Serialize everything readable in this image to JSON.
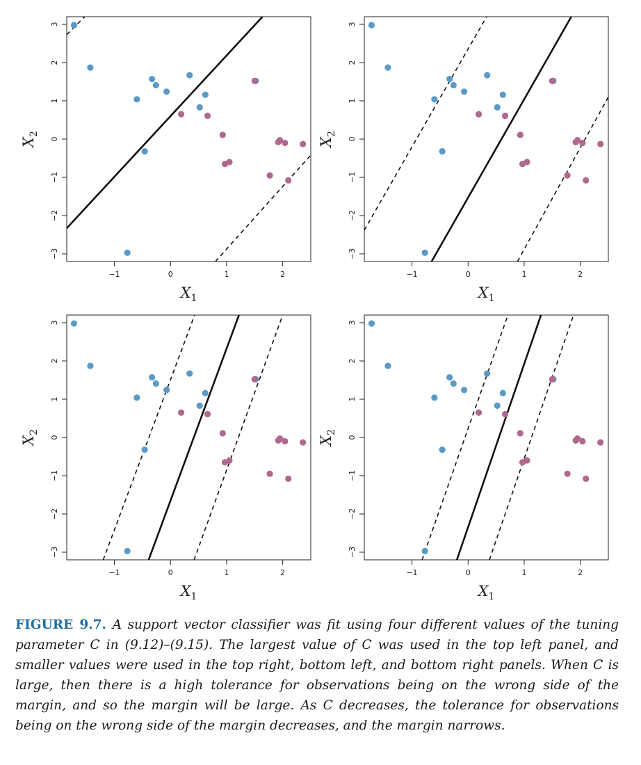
{
  "chart_data": [
    {
      "type": "scatter",
      "panel": "top-left",
      "xlabel": "X1",
      "ylabel": "X2",
      "xlim": [
        -1.85,
        2.5
      ],
      "ylim": [
        -3.2,
        3.2
      ],
      "xticks": [
        -1,
        0,
        1,
        2
      ],
      "yticks": [
        -3,
        -2,
        -1,
        0,
        1,
        2,
        3
      ],
      "grid": false,
      "series": [
        {
          "color": "#5b9ac6",
          "points": [
            [
              -1.72,
              2.98
            ],
            [
              -1.43,
              1.87
            ],
            [
              -0.6,
              1.04
            ],
            [
              -0.33,
              1.57
            ],
            [
              -0.26,
              1.41
            ],
            [
              -0.07,
              1.24
            ],
            [
              0.34,
              1.67
            ],
            [
              0.52,
              0.83
            ],
            [
              0.62,
              1.16
            ],
            [
              1.52,
              1.52
            ],
            [
              -0.46,
              -0.32
            ],
            [
              -0.77,
              -2.97
            ]
          ]
        },
        {
          "color": "#b0688e",
          "points": [
            [
              0.19,
              0.65
            ],
            [
              0.66,
              0.61
            ],
            [
              0.93,
              0.11
            ],
            [
              1.5,
              1.52
            ],
            [
              0.97,
              -0.65
            ],
            [
              1.05,
              -0.6
            ],
            [
              1.77,
              -0.95
            ],
            [
              1.92,
              -0.08
            ],
            [
              1.95,
              -0.03
            ],
            [
              2.04,
              -0.1
            ],
            [
              2.1,
              -1.08
            ],
            [
              2.36,
              -0.13
            ]
          ]
        }
      ],
      "lines": [
        {
          "style": "solid",
          "p1": [
            -1.85,
            -2.33
          ],
          "p2": [
            1.64,
            3.2
          ]
        },
        {
          "style": "dashed",
          "p1": [
            -1.85,
            2.73
          ],
          "p2": [
            -1.53,
            3.2
          ]
        },
        {
          "style": "dashed",
          "p1": [
            0.8,
            -3.2
          ],
          "p2": [
            2.5,
            -0.42
          ]
        }
      ]
    },
    {
      "type": "scatter",
      "panel": "top-right",
      "xlabel": "X1",
      "ylabel": "X2",
      "xlim": [
        -1.85,
        2.5
      ],
      "ylim": [
        -3.2,
        3.2
      ],
      "xticks": [
        -1,
        0,
        1,
        2
      ],
      "yticks": [
        -3,
        -2,
        -1,
        0,
        1,
        2,
        3
      ],
      "grid": false,
      "series": [
        {
          "color": "#5b9ac6",
          "points": [
            [
              -1.72,
              2.98
            ],
            [
              -1.43,
              1.87
            ],
            [
              -0.6,
              1.04
            ],
            [
              -0.33,
              1.57
            ],
            [
              -0.26,
              1.41
            ],
            [
              -0.07,
              1.24
            ],
            [
              0.34,
              1.67
            ],
            [
              0.52,
              0.83
            ],
            [
              0.62,
              1.16
            ],
            [
              1.52,
              1.52
            ],
            [
              -0.46,
              -0.32
            ],
            [
              -0.77,
              -2.97
            ]
          ]
        },
        {
          "color": "#b0688e",
          "points": [
            [
              0.19,
              0.65
            ],
            [
              0.66,
              0.61
            ],
            [
              0.93,
              0.11
            ],
            [
              1.5,
              1.52
            ],
            [
              0.97,
              -0.65
            ],
            [
              1.05,
              -0.6
            ],
            [
              1.77,
              -0.95
            ],
            [
              1.92,
              -0.08
            ],
            [
              1.95,
              -0.03
            ],
            [
              2.04,
              -0.1
            ],
            [
              2.1,
              -1.08
            ],
            [
              2.36,
              -0.13
            ]
          ]
        }
      ],
      "lines": [
        {
          "style": "solid",
          "p1": [
            -0.65,
            -3.2
          ],
          "p2": [
            1.84,
            3.2
          ]
        },
        {
          "style": "dashed",
          "p1": [
            -1.85,
            -2.38
          ],
          "p2": [
            0.33,
            3.2
          ]
        },
        {
          "style": "dashed",
          "p1": [
            0.88,
            -3.2
          ],
          "p2": [
            2.5,
            1.1
          ]
        }
      ]
    },
    {
      "type": "scatter",
      "panel": "bottom-left",
      "xlabel": "X1",
      "ylabel": "X2",
      "xlim": [
        -1.85,
        2.5
      ],
      "ylim": [
        -3.2,
        3.2
      ],
      "xticks": [
        -1,
        0,
        1,
        2
      ],
      "yticks": [
        -3,
        -2,
        -1,
        0,
        1,
        2,
        3
      ],
      "grid": false,
      "series": [
        {
          "color": "#5b9ac6",
          "points": [
            [
              -1.72,
              2.98
            ],
            [
              -1.43,
              1.87
            ],
            [
              -0.6,
              1.04
            ],
            [
              -0.33,
              1.57
            ],
            [
              -0.26,
              1.41
            ],
            [
              -0.07,
              1.24
            ],
            [
              0.34,
              1.67
            ],
            [
              0.52,
              0.83
            ],
            [
              0.62,
              1.16
            ],
            [
              1.52,
              1.52
            ],
            [
              -0.46,
              -0.32
            ],
            [
              -0.77,
              -2.97
            ]
          ]
        },
        {
          "color": "#b0688e",
          "points": [
            [
              0.19,
              0.65
            ],
            [
              0.66,
              0.61
            ],
            [
              0.93,
              0.11
            ],
            [
              1.5,
              1.52
            ],
            [
              0.97,
              -0.65
            ],
            [
              1.05,
              -0.6
            ],
            [
              1.77,
              -0.95
            ],
            [
              1.92,
              -0.08
            ],
            [
              1.95,
              -0.03
            ],
            [
              2.04,
              -0.1
            ],
            [
              2.1,
              -1.08
            ],
            [
              2.36,
              -0.13
            ]
          ]
        }
      ],
      "lines": [
        {
          "style": "solid",
          "p1": [
            -0.39,
            -3.2
          ],
          "p2": [
            1.22,
            3.2
          ]
        },
        {
          "style": "dashed",
          "p1": [
            -1.2,
            -3.2
          ],
          "p2": [
            0.43,
            3.2
          ]
        },
        {
          "style": "dashed",
          "p1": [
            0.42,
            -3.2
          ],
          "p2": [
            2.0,
            3.2
          ]
        }
      ]
    },
    {
      "type": "scatter",
      "panel": "bottom-right",
      "xlabel": "X1",
      "ylabel": "X2",
      "xlim": [
        -1.85,
        2.5
      ],
      "ylim": [
        -3.2,
        3.2
      ],
      "xticks": [
        -1,
        0,
        1,
        2
      ],
      "yticks": [
        -3,
        -2,
        -1,
        0,
        1,
        2,
        3
      ],
      "grid": false,
      "series": [
        {
          "color": "#5b9ac6",
          "points": [
            [
              -1.72,
              2.98
            ],
            [
              -1.43,
              1.87
            ],
            [
              -0.6,
              1.04
            ],
            [
              -0.33,
              1.57
            ],
            [
              -0.26,
              1.41
            ],
            [
              -0.07,
              1.24
            ],
            [
              0.34,
              1.67
            ],
            [
              0.52,
              0.83
            ],
            [
              0.62,
              1.16
            ],
            [
              1.52,
              1.52
            ],
            [
              -0.46,
              -0.32
            ],
            [
              -0.77,
              -2.97
            ]
          ]
        },
        {
          "color": "#b0688e",
          "points": [
            [
              0.19,
              0.65
            ],
            [
              0.66,
              0.61
            ],
            [
              0.93,
              0.11
            ],
            [
              1.5,
              1.52
            ],
            [
              0.97,
              -0.65
            ],
            [
              1.05,
              -0.6
            ],
            [
              1.77,
              -0.95
            ],
            [
              1.92,
              -0.08
            ],
            [
              1.95,
              -0.03
            ],
            [
              2.04,
              -0.1
            ],
            [
              2.1,
              -1.08
            ],
            [
              2.36,
              -0.13
            ]
          ]
        }
      ],
      "lines": [
        {
          "style": "solid",
          "p1": [
            -0.2,
            -3.2
          ],
          "p2": [
            1.3,
            3.2
          ]
        },
        {
          "style": "dashed",
          "p1": [
            -0.82,
            -3.2
          ],
          "p2": [
            0.71,
            3.2
          ]
        },
        {
          "style": "dashed",
          "p1": [
            0.38,
            -3.2
          ],
          "p2": [
            1.88,
            3.2
          ]
        }
      ]
    }
  ],
  "caption": {
    "label": "FIGURE 9.7.",
    "text": "A support vector classifier was fit using four different values of the tuning parameter C in (9.12)–(9.15). The largest value of C was used in the top left panel, and smaller values were used in the top right, bottom left, and bottom right panels. When C is large, then there is a high tolerance for observations being on the wrong side of the margin, and so the margin will be large. As C decreases, the tolerance for observations being on the wrong side of the margin decreases, and the margin narrows."
  }
}
